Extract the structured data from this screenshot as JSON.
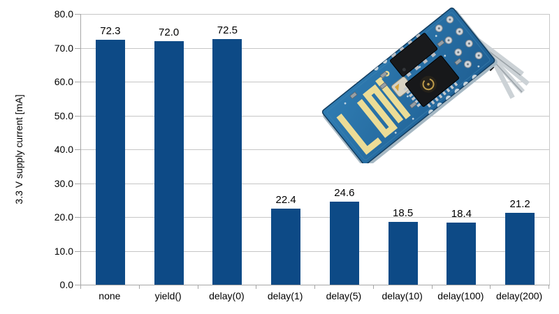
{
  "chart_data": {
    "type": "bar",
    "title": "",
    "categories": [
      "none",
      "yield()",
      "delay(0)",
      "delay(1)",
      "delay(5)",
      "delay(10)",
      "delay(100)",
      "delay(200)"
    ],
    "values": [
      72.3,
      72.0,
      72.5,
      22.4,
      24.6,
      18.5,
      18.4,
      21.2
    ],
    "value_labels": [
      "72.3",
      "72.0",
      "72.5",
      "22.4",
      "24.6",
      "18.5",
      "18.4",
      "21.2"
    ],
    "xlabel": "",
    "ylabel": "3.3 V supply current [mA]",
    "ylim": [
      0,
      80
    ],
    "ytick_step": 10,
    "ytick_labels": [
      "0.0",
      "10.0",
      "20.0",
      "30.0",
      "40.0",
      "50.0",
      "60.0",
      "70.0",
      "80.0"
    ],
    "grid": true,
    "legend": "none",
    "bar_color": "#0d4a86",
    "gridline_color": "#c6c6c6",
    "axis_line_color": "#a6a6a6",
    "label_color": "#000000"
  },
  "overlay_image": {
    "alt": "ESP8266 ESP-01 Wi-Fi module on blue PCB with gold meander antenna, flash chip, ESP8266 chip and 2x4 header pins",
    "pcb_color": "#2d74a8",
    "pcb_dark_color": "#215d8d",
    "antenna_color": "#ecdc96",
    "chip_color": "#191a1c",
    "pin_color": "#ccd2d6"
  }
}
